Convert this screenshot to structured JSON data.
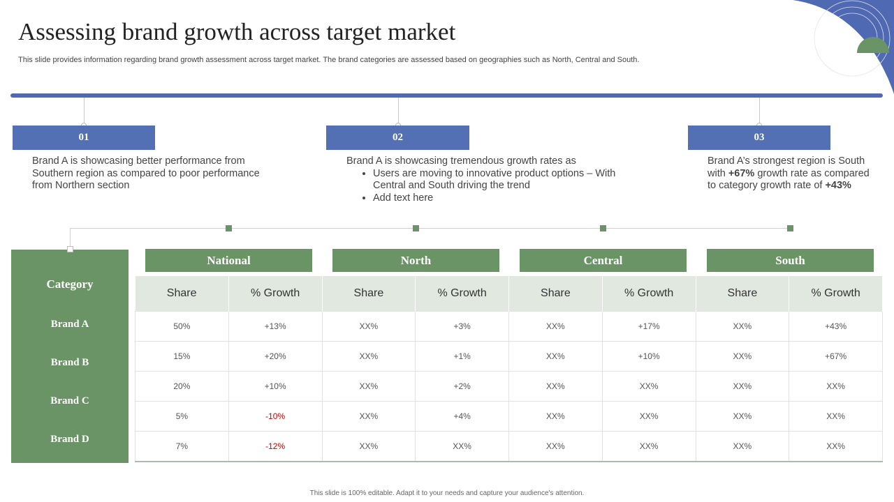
{
  "header": {
    "title": "Assessing brand growth across target market",
    "subtitle": "This slide provides information regarding brand growth assessment across target market. The brand categories are assessed based on geographies such as North, Central and South."
  },
  "points": [
    {
      "number": "01",
      "text": "Brand A is showcasing better performance from Southern region as compared to poor performance from Northern section"
    },
    {
      "number": "02",
      "intro": "Brand A is showcasing tremendous growth rates as",
      "bullets": [
        "Users are moving to innovative product options – With Central and South driving the trend",
        "Add text here"
      ]
    },
    {
      "number": "03",
      "text_before": "Brand A’s strongest region is South with ",
      "bold1": "+67%",
      "text_middle": " growth rate as compared to category growth rate of ",
      "bold2": "+43%"
    }
  ],
  "table": {
    "category_label": "Category",
    "brands": [
      "Brand A",
      "Brand B",
      "Brand C",
      "Brand D"
    ],
    "regions": [
      "National",
      "North",
      "Central",
      "South"
    ],
    "columns": [
      "Share",
      "% Growth",
      "Share",
      "% Growth",
      "Share",
      "% Growth",
      "Share",
      "% Growth"
    ],
    "rows": [
      [
        "50%",
        "+13%",
        "XX%",
        "+3%",
        "XX%",
        "+17%",
        "XX%",
        "+43%"
      ],
      [
        "15%",
        "+20%",
        "XX%",
        "+1%",
        "XX%",
        "+10%",
        "XX%",
        "+67%"
      ],
      [
        "20%",
        "+10%",
        "XX%",
        "+2%",
        "XX%",
        "XX%",
        "XX%",
        "XX%"
      ],
      [
        "5%",
        "-10%",
        "XX%",
        "+4%",
        "XX%",
        "XX%",
        "XX%",
        "XX%"
      ],
      [
        "7%",
        "-12%",
        "XX%",
        "XX%",
        "XX%",
        "XX%",
        "XX%",
        "XX%"
      ]
    ]
  },
  "footer": "This slide is 100% editable. Adapt it to your needs and capture your audience's attention.",
  "colors": {
    "accent_blue": "#4f69b2",
    "accent_green": "#6a9466",
    "negative_red": "#cc0000"
  }
}
